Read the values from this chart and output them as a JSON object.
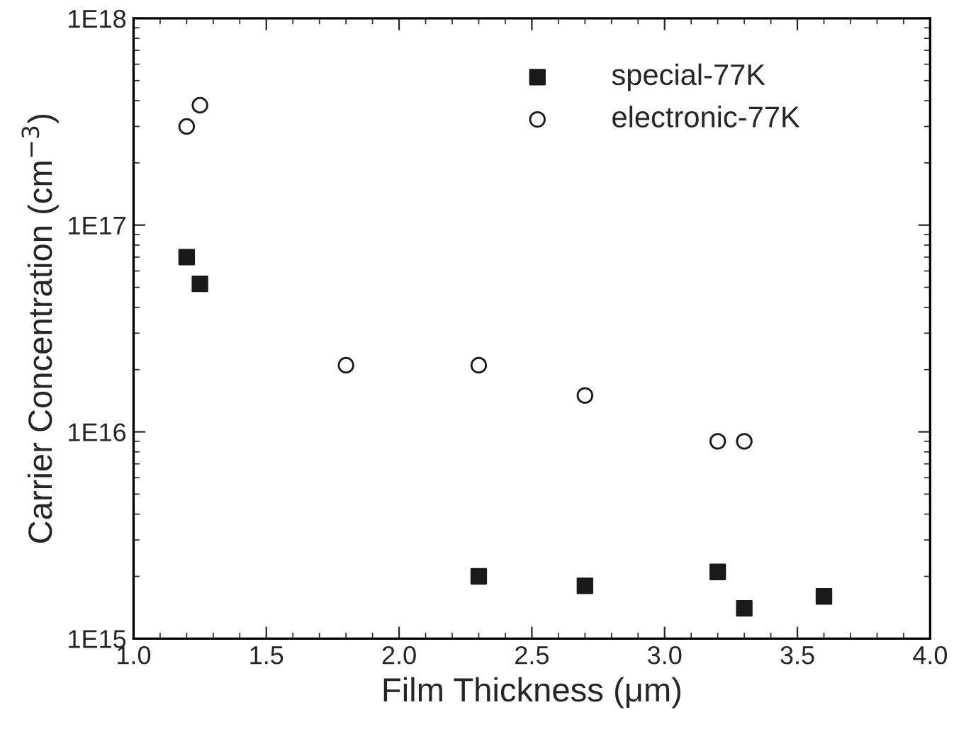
{
  "chart_data": {
    "type": "scatter",
    "xlabel": "Film Thickness (μm)",
    "ylabel": "Carrier Concentration (cm$^{−3}$)",
    "log": "y",
    "xlim": [
      1.0,
      4.0
    ],
    "xticks": [
      {
        "value": 1.0,
        "label": "1.0"
      },
      {
        "value": 1.5,
        "label": "1.5"
      },
      {
        "value": 2.0,
        "label": "2.0"
      },
      {
        "value": 2.5,
        "label": "2.5"
      },
      {
        "value": 3.0,
        "label": "3.0"
      },
      {
        "value": 3.5,
        "label": "3.5"
      },
      {
        "value": 4.0,
        "label": "4.0"
      }
    ],
    "ylim": [
      1000000000000000.0,
      1e+18
    ],
    "yticks": [
      {
        "value": 1000000000000000.0,
        "label": "1E15"
      },
      {
        "value": 1e+16,
        "label": "1E16"
      },
      {
        "value": 1e+17,
        "label": "1E17"
      },
      {
        "value": 1e+18,
        "label": "1E18"
      }
    ],
    "grid": false,
    "legend": "top right",
    "series": [
      {
        "name": "special-77K",
        "color": "#1a1a1a",
        "marker": "square",
        "x": [
          1.2,
          1.25,
          2.3,
          2.7,
          3.2,
          3.3,
          3.6
        ],
        "values": [
          7e+16,
          5.2e+16,
          2000000000000000.0,
          1800000000000000.0,
          2100000000000000.0,
          1400000000000000.0,
          1600000000000000.0
        ]
      },
      {
        "name": "electronic-77K",
        "color": "#1a1a1a",
        "marker": "circle",
        "x": [
          1.2,
          1.25,
          1.8,
          2.3,
          2.7,
          3.2,
          3.3
        ],
        "values": [
          3e+17,
          3.8e+17,
          2.1e+16,
          2.1e+16,
          1.5e+16,
          9000000000000000.0,
          9000000000000000.0
        ]
      }
    ]
  }
}
